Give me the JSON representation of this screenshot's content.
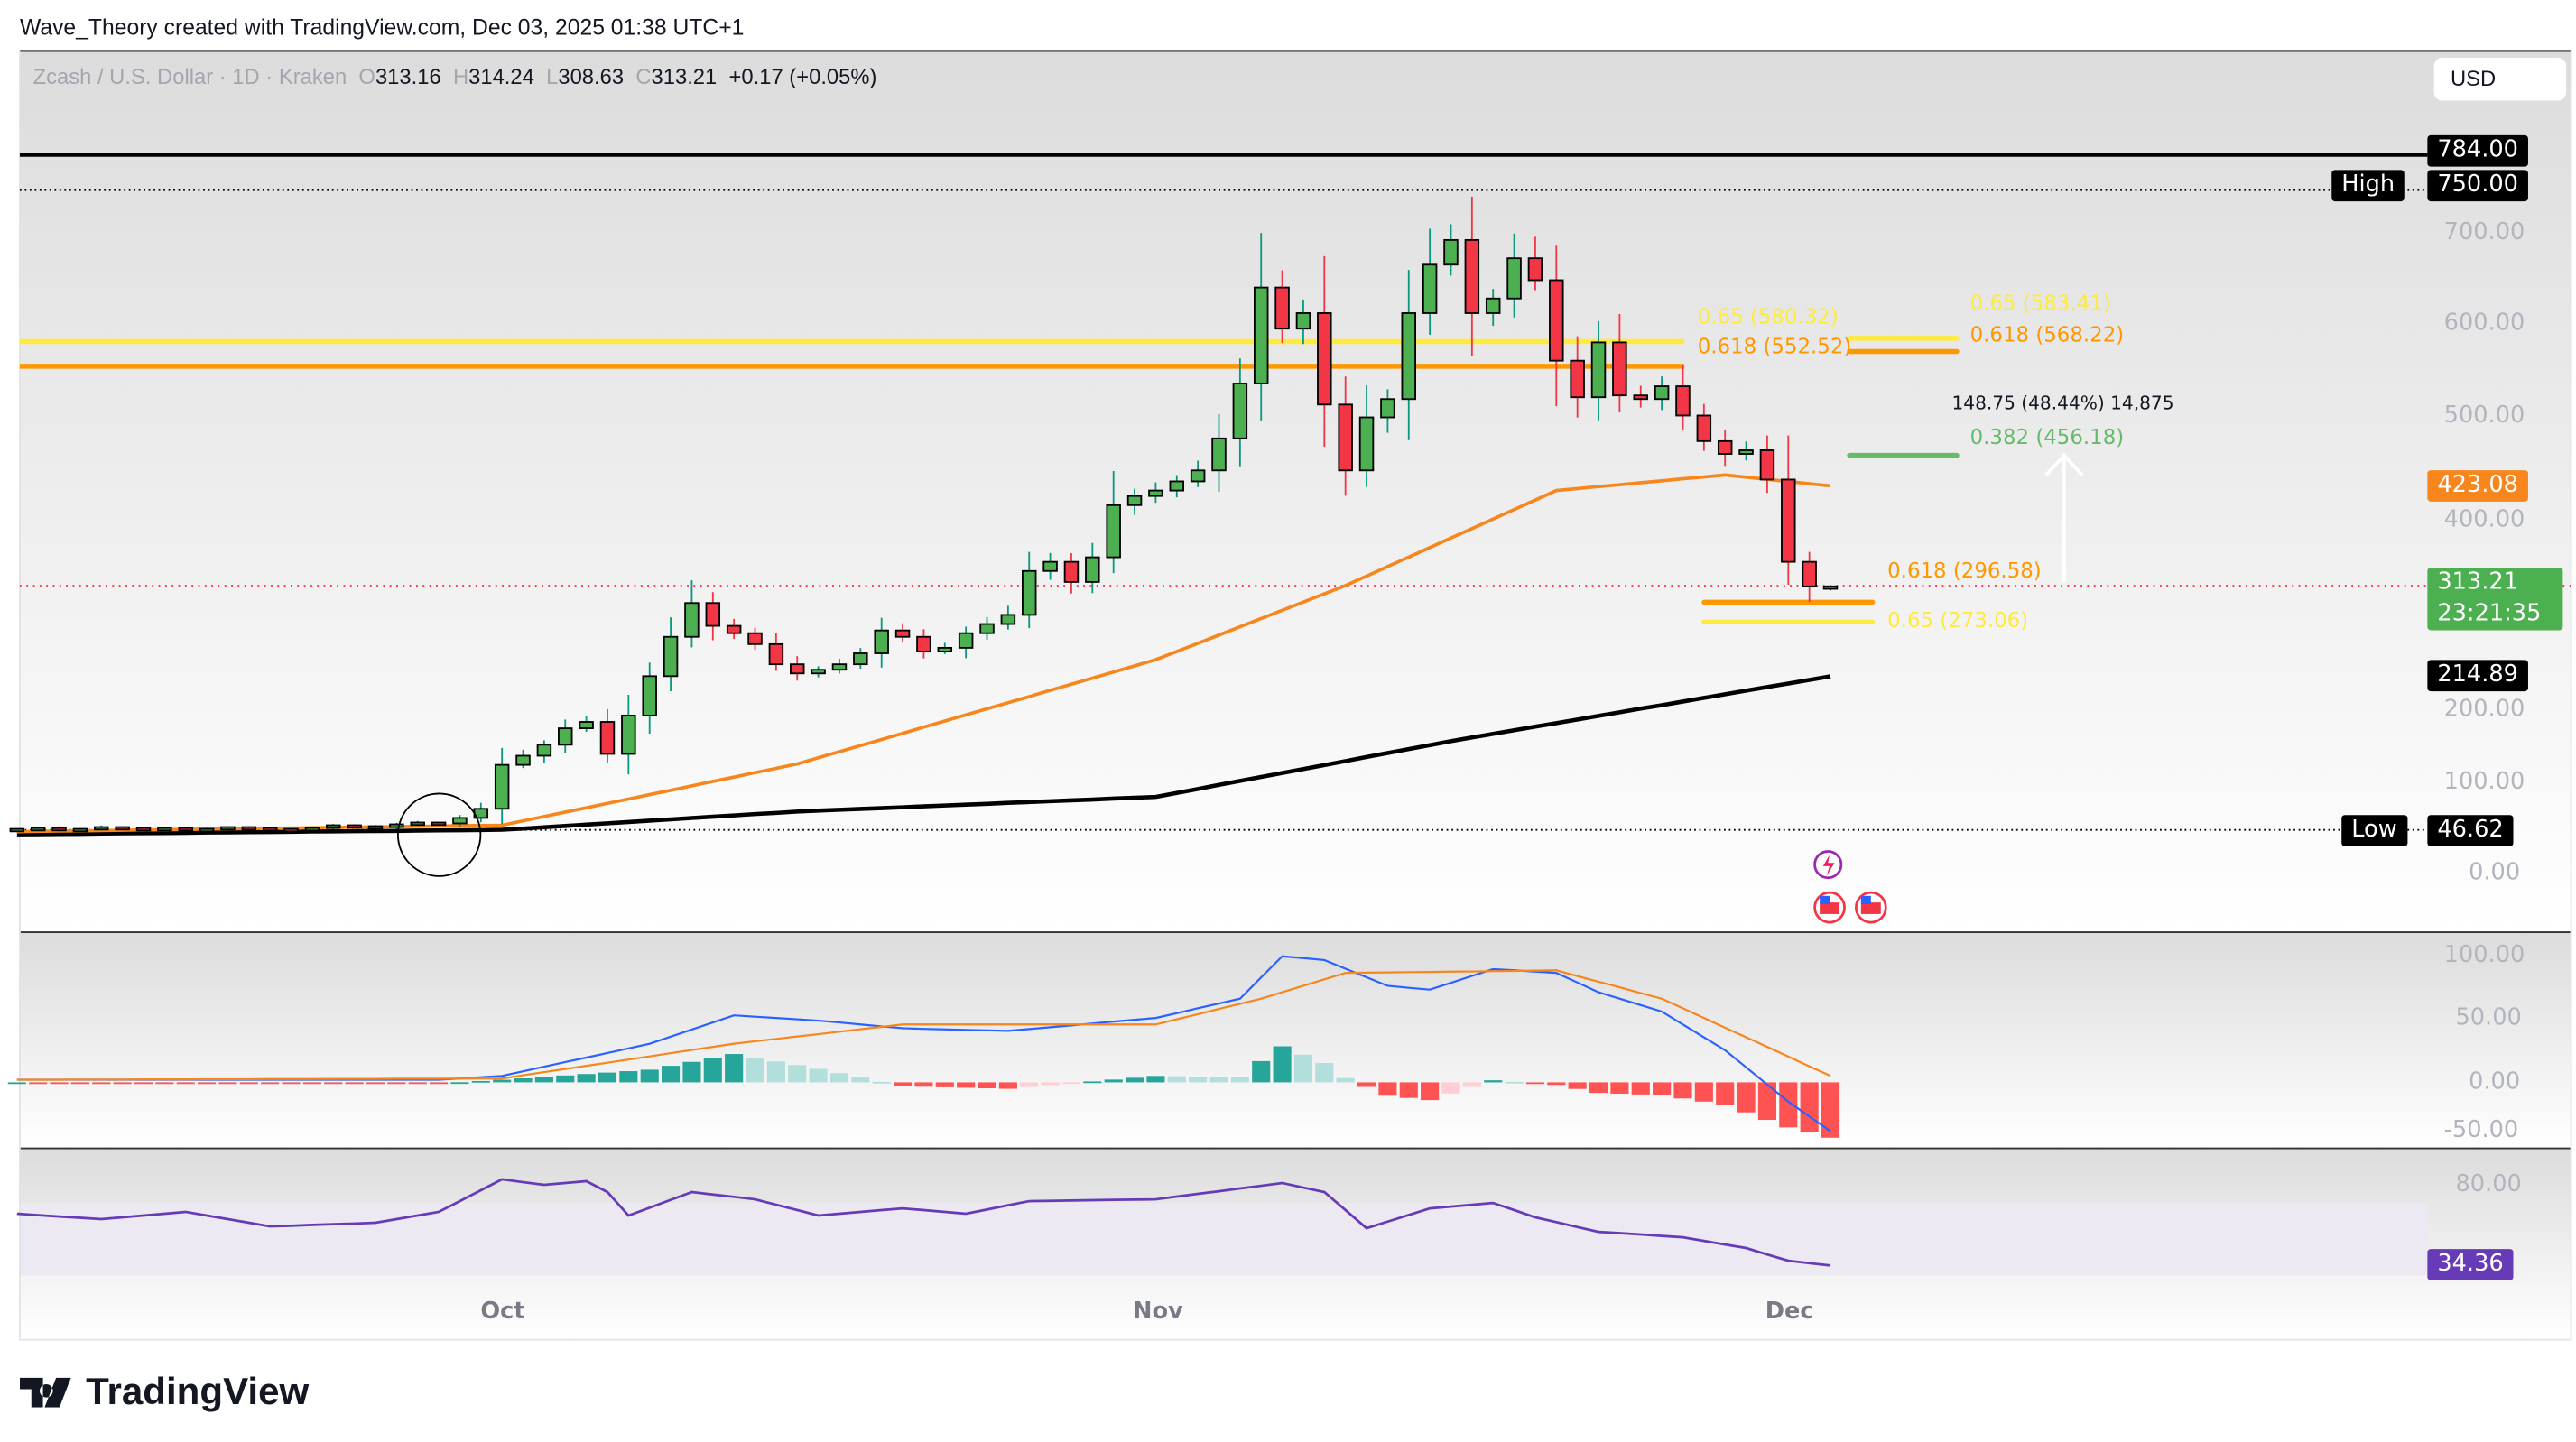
{
  "credit": "Wave_Theory created with TradingView.com, Dec 03, 2025 01:38 UTC+1",
  "legend": {
    "symbol": "Zcash / U.S. Dollar · 1D · Kraken",
    "o_label": "O",
    "o": "313.16",
    "h_label": "H",
    "h": "314.24",
    "l_label": "L",
    "l": "308.63",
    "c_label": "C",
    "c": "313.21",
    "change": "+0.17 (+0.05%)"
  },
  "currency_button": "USD",
  "tags": {
    "top": "784.00",
    "high_label": "High",
    "high": "750.00",
    "ema50": "423.08",
    "last_price": "313.21",
    "countdown": "23:21:35",
    "ema200": "214.89",
    "low_label": "Low",
    "low": "46.62",
    "rsi": "34.36"
  },
  "fib_labels": {
    "left_065": "0.65 (580.32)",
    "left_0618": "0.618 (552.52)",
    "right_065": "0.65 (583.41)",
    "right_0618": "0.618 (568.22)",
    "right_0382": "0.382 (456.18)",
    "low_0618": "0.618 (296.58)",
    "low_065": "0.65 (273.06)",
    "measure": "148.75 (48.44%) 14,875"
  },
  "logo": "TradingView",
  "colors": {
    "up": "#4caf50",
    "down": "#f23645",
    "ema50": "#f7861c",
    "ema200": "#000000",
    "macd": "#2962ff",
    "signal": "#f7861c",
    "rsi": "#673ab7",
    "fib_yellow": "#ffeb3b",
    "fib_orange": "#ff9800",
    "fib_green": "#66bb6a"
  },
  "chart_data": [
    {
      "type": "candlestick",
      "title": "Zcash / U.S. Dollar · 1D · Kraken",
      "start": "2025-09-08",
      "ylim": [
        0,
        784
      ],
      "y_ticks": [
        "700.00",
        "600.00",
        "500.00",
        "400.00",
        "200.00",
        "100.00",
        "0.00"
      ],
      "x_ticks": [
        "Oct",
        "Nov",
        "Dec"
      ],
      "closes": [
        48,
        49,
        47,
        48,
        50,
        49,
        48,
        49,
        47,
        48,
        50,
        49,
        48,
        47,
        49,
        52,
        51,
        50,
        53,
        55,
        54,
        60,
        70,
        118,
        128,
        140,
        158,
        165,
        130,
        172,
        215,
        258,
        295,
        270,
        262,
        250,
        228,
        218,
        222,
        228,
        240,
        265,
        258,
        242,
        246,
        262,
        272,
        282,
        330,
        340,
        318,
        345,
        402,
        412,
        418,
        428,
        440,
        475,
        535,
        640,
        595,
        612,
        512,
        440,
        498,
        518,
        612,
        665,
        692,
        612,
        628,
        672,
        648,
        560,
        520,
        580,
        522,
        518,
        532,
        500,
        472,
        458,
        462,
        430,
        340,
        313.16,
        313.21
      ],
      "last_candle": {
        "o": 313.16,
        "h": 314.24,
        "l": 308.63,
        "c": 313.21
      },
      "ema50": [
        [
          "09-08",
          45
        ],
        [
          "10-01",
          52
        ],
        [
          "10-15",
          119
        ],
        [
          "11-01",
          233
        ],
        [
          "11-10",
          314
        ],
        [
          "11-20",
          418
        ],
        [
          "11-28",
          435
        ],
        [
          "12-03",
          423.08
        ]
      ],
      "ema200": [
        [
          "09-08",
          42
        ],
        [
          "10-01",
          47
        ],
        [
          "10-15",
          67
        ],
        [
          "11-01",
          83
        ],
        [
          "11-15",
          144
        ],
        [
          "12-03",
          214.89
        ]
      ],
      "levels": {
        "top": 784,
        "high": 750,
        "low": 46.62,
        "last": 313.21
      }
    },
    {
      "type": "macd",
      "y_ticks": [
        "100.00",
        "50.00",
        "0.00",
        "-50.00"
      ],
      "macd": [
        [
          "09-08",
          2
        ],
        [
          "09-28",
          2
        ],
        [
          "10-01",
          5
        ],
        [
          "10-08",
          30
        ],
        [
          "10-12",
          52
        ],
        [
          "10-16",
          48
        ],
        [
          "10-20",
          42
        ],
        [
          "10-25",
          40
        ],
        [
          "11-01",
          50
        ],
        [
          "11-05",
          65
        ],
        [
          "11-07",
          98
        ],
        [
          "11-09",
          95
        ],
        [
          "11-12",
          75
        ],
        [
          "11-14",
          72
        ],
        [
          "11-17",
          88
        ],
        [
          "11-20",
          85
        ],
        [
          "11-22",
          70
        ],
        [
          "11-25",
          55
        ],
        [
          "11-28",
          25
        ],
        [
          "12-01",
          -15
        ],
        [
          "12-03",
          -38
        ]
      ],
      "signal": [
        [
          "09-08",
          2
        ],
        [
          "10-01",
          3
        ],
        [
          "10-12",
          30
        ],
        [
          "10-20",
          45
        ],
        [
          "11-01",
          45
        ],
        [
          "11-06",
          65
        ],
        [
          "11-10",
          85
        ],
        [
          "11-20",
          87
        ],
        [
          "11-25",
          65
        ],
        [
          "11-29",
          35
        ],
        [
          "12-03",
          5
        ]
      ]
    },
    {
      "type": "rsi",
      "y_ticks": [
        "80.00"
      ],
      "last": 34.36,
      "rsi": [
        [
          "09-08",
          63
        ],
        [
          "09-12",
          60
        ],
        [
          "09-16",
          64
        ],
        [
          "09-20",
          56
        ],
        [
          "09-25",
          58
        ],
        [
          "09-28",
          64
        ],
        [
          "10-01",
          82
        ],
        [
          "10-03",
          79
        ],
        [
          "10-05",
          81
        ],
        [
          "10-06",
          75
        ],
        [
          "10-07",
          62
        ],
        [
          "10-10",
          75
        ],
        [
          "10-13",
          71
        ],
        [
          "10-16",
          62
        ],
        [
          "10-20",
          66
        ],
        [
          "10-23",
          63
        ],
        [
          "10-26",
          70
        ],
        [
          "11-01",
          71
        ],
        [
          "11-07",
          80
        ],
        [
          "11-09",
          75
        ],
        [
          "11-11",
          55
        ],
        [
          "11-14",
          66
        ],
        [
          "11-17",
          69
        ],
        [
          "11-19",
          61
        ],
        [
          "11-22",
          53
        ],
        [
          "11-26",
          50
        ],
        [
          "11-29",
          44
        ],
        [
          "12-01",
          37
        ],
        [
          "12-03",
          34.36
        ]
      ]
    }
  ]
}
